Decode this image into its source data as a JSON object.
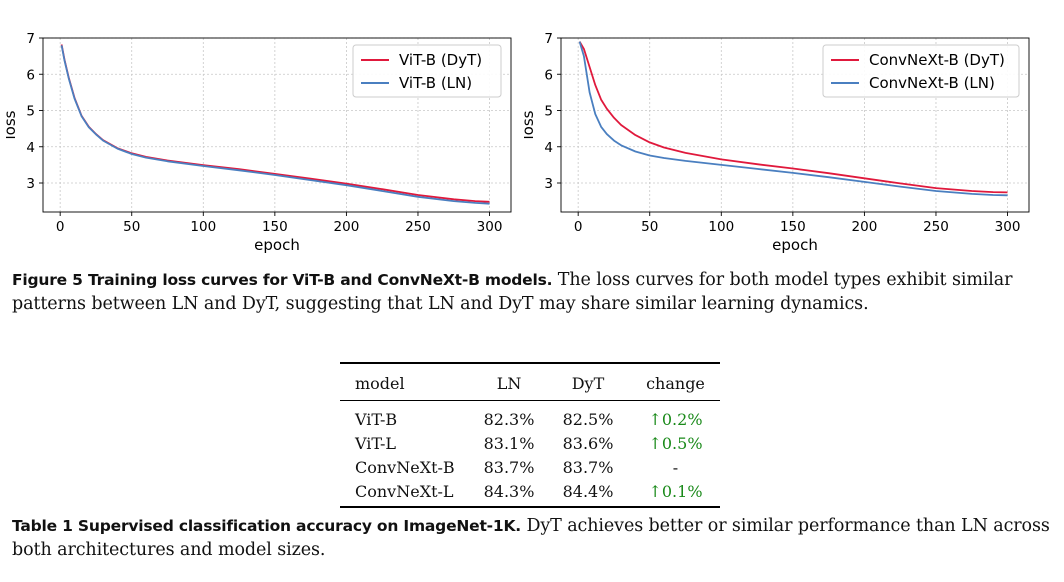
{
  "chart_data": [
    {
      "type": "line",
      "xlabel": "epoch",
      "ylabel": "loss",
      "xlim": [
        -12,
        315
      ],
      "ylim": [
        2.2,
        7.0
      ],
      "xticks": [
        0,
        50,
        100,
        150,
        200,
        250,
        300
      ],
      "yticks": [
        3,
        4,
        5,
        6,
        7
      ],
      "grid": true,
      "legend": "top-right",
      "series": [
        {
          "name": "ViT-B (DyT)",
          "color": "#e0193c",
          "x": [
            1,
            3,
            6,
            10,
            15,
            20,
            25,
            30,
            40,
            50,
            60,
            75,
            100,
            125,
            150,
            175,
            200,
            225,
            250,
            275,
            290,
            300
          ],
          "y": [
            6.82,
            6.4,
            5.9,
            5.35,
            4.85,
            4.55,
            4.35,
            4.18,
            3.96,
            3.82,
            3.72,
            3.62,
            3.49,
            3.38,
            3.25,
            3.12,
            2.98,
            2.83,
            2.67,
            2.55,
            2.5,
            2.48
          ]
        },
        {
          "name": "ViT-B (LN)",
          "color": "#4a7fc0",
          "x": [
            1,
            3,
            6,
            10,
            15,
            20,
            25,
            30,
            40,
            50,
            60,
            75,
            100,
            125,
            150,
            175,
            200,
            225,
            250,
            275,
            290,
            300
          ],
          "y": [
            6.8,
            6.38,
            5.88,
            5.33,
            4.84,
            4.54,
            4.34,
            4.17,
            3.95,
            3.8,
            3.7,
            3.6,
            3.47,
            3.35,
            3.22,
            3.08,
            2.94,
            2.78,
            2.62,
            2.5,
            2.45,
            2.43
          ]
        }
      ]
    },
    {
      "type": "line",
      "xlabel": "epoch",
      "ylabel": "loss",
      "xlim": [
        -12,
        315
      ],
      "ylim": [
        2.2,
        7.0
      ],
      "xticks": [
        0,
        50,
        100,
        150,
        200,
        250,
        300
      ],
      "yticks": [
        3,
        4,
        5,
        6,
        7
      ],
      "grid": true,
      "legend": "top-right",
      "series": [
        {
          "name": "ConvNeXt-B (DyT)",
          "color": "#e0193c",
          "x": [
            1,
            4,
            8,
            12,
            16,
            20,
            25,
            30,
            40,
            50,
            60,
            75,
            100,
            125,
            150,
            175,
            200,
            225,
            250,
            275,
            290,
            300
          ],
          "y": [
            6.9,
            6.7,
            6.2,
            5.7,
            5.3,
            5.05,
            4.8,
            4.6,
            4.32,
            4.12,
            3.98,
            3.83,
            3.65,
            3.52,
            3.4,
            3.27,
            3.13,
            2.99,
            2.86,
            2.78,
            2.75,
            2.74
          ]
        },
        {
          "name": "ConvNeXt-B (LN)",
          "color": "#4a7fc0",
          "x": [
            1,
            4,
            8,
            12,
            16,
            20,
            25,
            30,
            40,
            50,
            60,
            75,
            100,
            125,
            150,
            175,
            200,
            225,
            250,
            275,
            290,
            300
          ],
          "y": [
            6.9,
            6.5,
            5.5,
            4.9,
            4.55,
            4.35,
            4.17,
            4.04,
            3.87,
            3.76,
            3.69,
            3.61,
            3.5,
            3.39,
            3.28,
            3.16,
            3.03,
            2.9,
            2.78,
            2.7,
            2.67,
            2.66
          ]
        }
      ]
    }
  ],
  "figure_caption": {
    "label": "Figure 5   Training loss curves for ViT-B and ConvNeXt-B models.",
    "text": " The loss curves for both model types exhibit similar patterns between LN and DyT, suggesting that LN and DyT may share similar learning dynamics."
  },
  "table": {
    "headers": [
      "model",
      "LN",
      "DyT",
      "change"
    ],
    "rows": [
      {
        "model": "ViT-B",
        "ln": "82.3%",
        "dyt": "82.5%",
        "change": "↑0.2%"
      },
      {
        "model": "ViT-L",
        "ln": "83.1%",
        "dyt": "83.6%",
        "change": "↑0.5%"
      },
      {
        "model": "ConvNeXt-B",
        "ln": "83.7%",
        "dyt": "83.7%",
        "change": "-"
      },
      {
        "model": "ConvNeXt-L",
        "ln": "84.3%",
        "dyt": "84.4%",
        "change": "↑0.1%"
      }
    ]
  },
  "table_caption": {
    "label": "Table 1  Supervised classification accuracy on ImageNet-1K.",
    "text": " DyT achieves better or similar performance than LN across both architectures and model sizes."
  }
}
